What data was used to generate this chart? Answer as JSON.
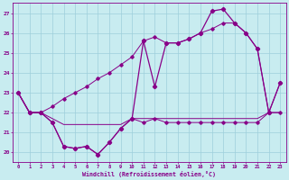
{
  "xlabel": "Windchill (Refroidissement éolien,°C)",
  "xlim": [
    -0.5,
    23.5
  ],
  "ylim": [
    19.5,
    27.5
  ],
  "yticks": [
    20,
    21,
    22,
    23,
    24,
    25,
    26,
    27
  ],
  "xticks": [
    0,
    1,
    2,
    3,
    4,
    5,
    6,
    7,
    8,
    9,
    10,
    11,
    12,
    13,
    14,
    15,
    16,
    17,
    18,
    19,
    20,
    21,
    22,
    23
  ],
  "bg_color": "#c8ecf0",
  "grid_color": "#9ecfdb",
  "line_color": "#880088",
  "line1_y": [
    23,
    22,
    22,
    21.5,
    20.3,
    20.2,
    20.3,
    19.9,
    20.5,
    21.2,
    21.7,
    21.5,
    21.7,
    21.5,
    21.5,
    21.5,
    21.5,
    21.5,
    21.5,
    21.5,
    21.5,
    21.5,
    22,
    22
  ],
  "line2_y": [
    23,
    22,
    22,
    21.7,
    21.4,
    21.4,
    21.4,
    21.4,
    21.4,
    21.4,
    21.7,
    21.7,
    21.7,
    21.7,
    21.7,
    21.7,
    21.7,
    21.7,
    21.7,
    21.7,
    21.7,
    21.7,
    22,
    22
  ],
  "line3_y": [
    23,
    22,
    22,
    22.3,
    22.7,
    23.0,
    23.3,
    23.7,
    24.0,
    24.4,
    24.8,
    25.6,
    25.8,
    25.5,
    25.5,
    25.7,
    26.0,
    26.2,
    26.5,
    26.5,
    26.0,
    25.2,
    22,
    23.5
  ],
  "line4_y": [
    23,
    22,
    22,
    21.5,
    20.3,
    20.2,
    20.3,
    19.9,
    20.5,
    21.2,
    21.7,
    25.6,
    23.3,
    25.5,
    25.5,
    25.7,
    26.0,
    27.1,
    27.2,
    26.5,
    26.0,
    25.2,
    22,
    23.5
  ]
}
